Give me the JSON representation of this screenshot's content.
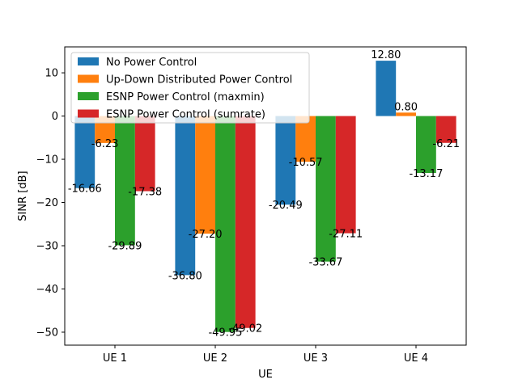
{
  "chart_data": {
    "type": "bar",
    "categories": [
      "UE 1",
      "UE 2",
      "UE 3",
      "UE 4"
    ],
    "series": [
      {
        "name": "No Power Control",
        "color": "#1f77b4",
        "values": [
          -16.66,
          -36.8,
          -20.49,
          12.8
        ]
      },
      {
        "name": "Up-Down Distributed Power Control",
        "color": "#ff7f0e",
        "values": [
          -6.23,
          -27.2,
          -10.57,
          0.8
        ]
      },
      {
        "name": "ESNP Power Control (maxmin)",
        "color": "#2ca02c",
        "values": [
          -29.89,
          -49.95,
          -33.67,
          -13.17
        ]
      },
      {
        "name": "ESNP Power Control (sumrate)",
        "color": "#d62728",
        "values": [
          -17.38,
          -49.02,
          -27.11,
          -6.21
        ]
      }
    ],
    "data_labels": [
      [
        "-16.66",
        "-36.80",
        "-20.49",
        "12.80"
      ],
      [
        "-6.23",
        "-27.20",
        "-10.57",
        "0.80"
      ],
      [
        "-29.89",
        "-49.95",
        "-33.67",
        "-13.17"
      ],
      [
        "-17.38",
        "-49.02",
        "-27.11",
        "-6.21"
      ]
    ],
    "xlabel": "UE",
    "ylabel": "SINR [dB]",
    "ylim": [
      -53,
      16
    ],
    "yticks": [
      10,
      0,
      -10,
      -20,
      -30,
      -40,
      -50
    ],
    "ytick_labels": [
      "10",
      "0",
      "−10",
      "−20",
      "−30",
      "−40",
      "−50"
    ],
    "grid": false,
    "legend_position": "top-left"
  }
}
